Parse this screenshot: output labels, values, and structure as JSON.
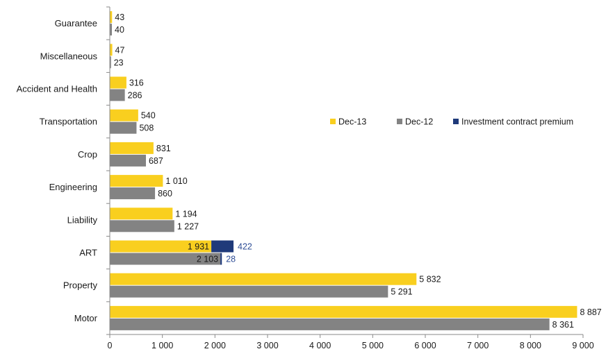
{
  "chart_data": {
    "type": "bar",
    "orientation": "horizontal",
    "stacked_series": [
      "Dec-13",
      "Investment contract premium"
    ],
    "categories": [
      "Guarantee",
      "Miscellaneous",
      "Accident and Health",
      "Transportation",
      "Crop",
      "Engineering",
      "Liability",
      "ART",
      "Property",
      "Motor"
    ],
    "series": [
      {
        "name": "Dec-13",
        "color": "#f9cf1f",
        "values": [
          43,
          47,
          316,
          540,
          831,
          1010,
          1194,
          1931,
          5832,
          8887
        ],
        "labels": [
          "43",
          "47",
          "316",
          "540",
          "831",
          "1 010",
          "1 194",
          "1 931",
          "5 832",
          "8 887"
        ]
      },
      {
        "name": "Dec-12",
        "color": "#838383",
        "values": [
          40,
          23,
          286,
          508,
          687,
          860,
          1227,
          2103,
          5291,
          8361
        ],
        "labels": [
          "40",
          "23",
          "286",
          "508",
          "687",
          "860",
          "1 227",
          "2 103",
          "5 291",
          "8 361"
        ]
      },
      {
        "name": "Investment contract premium",
        "color": "#1f3a7a",
        "label_color": "#2e4d96",
        "values": [
          null,
          null,
          null,
          null,
          null,
          null,
          null,
          422,
          null,
          null
        ],
        "labels": [
          "",
          "",
          "",
          "",
          "",
          "",
          "",
          "422",
          "",
          ""
        ],
        "dec12_values": [
          null,
          null,
          null,
          null,
          null,
          null,
          null,
          28,
          null,
          null
        ],
        "dec12_labels": [
          "",
          "",
          "",
          "",
          "",
          "",
          "",
          "28",
          "",
          ""
        ]
      }
    ],
    "xlim": [
      0,
      9000
    ],
    "x_ticks": [
      0,
      1000,
      2000,
      3000,
      4000,
      5000,
      6000,
      7000,
      8000,
      9000
    ],
    "x_tick_labels": [
      "0",
      "1 000",
      "2 000",
      "3 000",
      "4 000",
      "5 000",
      "6 000",
      "7 000",
      "8 000",
      "9 000"
    ],
    "grid": false,
    "legend_position": "right"
  }
}
